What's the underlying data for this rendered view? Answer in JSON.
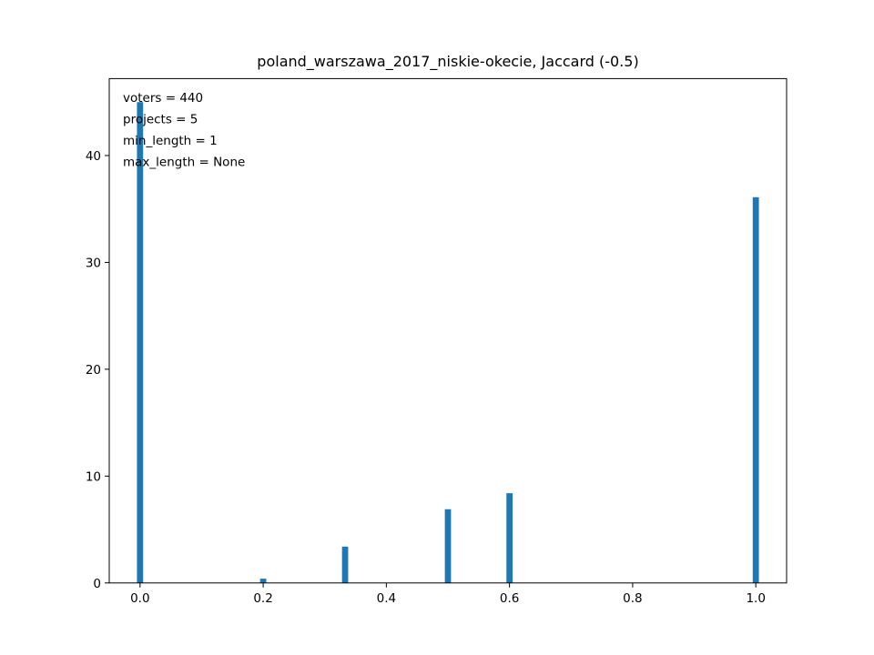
{
  "chart_data": {
    "type": "bar",
    "title": "poland_warszawa_2017_niskie-okecie, Jaccard (-0.5)",
    "xlabel": "",
    "ylabel": "",
    "xlim": [
      -0.05,
      1.05
    ],
    "ylim": [
      0,
      47.2
    ],
    "bar_width": 0.01,
    "bar_color": "#1f77b4",
    "x": [
      0.0,
      0.2,
      0.333,
      0.5,
      0.6,
      1.0
    ],
    "values": [
      45,
      0.4,
      3.4,
      6.9,
      8.4,
      36.1
    ],
    "xticks": [
      0.0,
      0.2,
      0.4,
      0.6,
      0.8,
      1.0
    ],
    "xtick_labels": [
      "0.0",
      "0.2",
      "0.4",
      "0.6",
      "0.8",
      "1.0"
    ],
    "yticks": [
      0,
      10,
      20,
      30,
      40
    ],
    "ytick_labels": [
      "0",
      "10",
      "20",
      "30",
      "40"
    ],
    "grid": false,
    "annotations": [
      "voters = 440",
      "projects = 5",
      "min_length = 1",
      "max_length = None"
    ]
  }
}
